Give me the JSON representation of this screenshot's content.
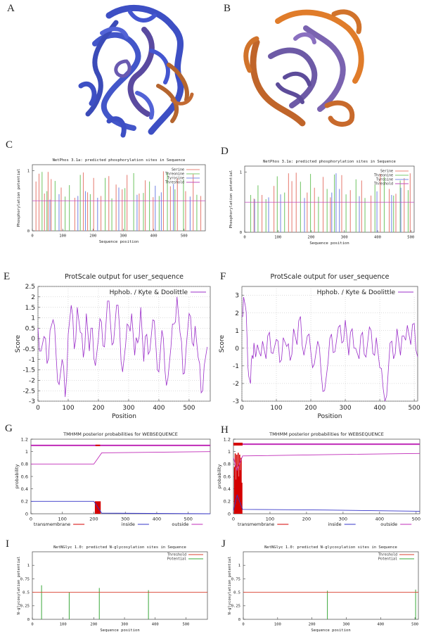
{
  "labels": {
    "a": "A",
    "b": "B",
    "c": "C",
    "d": "D",
    "e": "E",
    "f": "F",
    "g": "G",
    "h": "H",
    "i": "I",
    "j": "J"
  },
  "protein_a": {
    "name": "protein-structure-a",
    "colors": [
      "#3f51c8",
      "#5a4aa0",
      "#b5652e"
    ]
  },
  "protein_b": {
    "name": "protein-structure-b",
    "colors": [
      "#c0652a",
      "#6d5aa6",
      "#e07c2a"
    ]
  },
  "netphos": {
    "title": "NetPhos 3.1a: predicted phosphorylation sites in Sequence",
    "ylabel": "Phosphorylation potential",
    "xlabel": "Sequence position",
    "legend": [
      "Serine",
      "Threonine",
      "Tyrosine",
      "Threshold"
    ],
    "colors": {
      "serine": "#e8847a",
      "threonine": "#7bc96f",
      "tyrosine": "#7d8ee6",
      "threshold": "#c04dbd"
    }
  },
  "protscale": {
    "title": "ProtScale output for user_sequence",
    "legend": "Hphob. / Kyte & Doolittle",
    "ylabel": "Score",
    "xlabel": "Position",
    "color": "#9b2fc9"
  },
  "tmhmm": {
    "title": "TMHMM posterior probabilities for WEBSEQUENCE",
    "ylabel": "probability",
    "legend": [
      "transmembrane",
      "inside",
      "outside"
    ],
    "colors": {
      "transmembrane": "#d40000",
      "inside": "#3535c8",
      "outside": "#c02bb8"
    }
  },
  "netnglyc": {
    "title": "NetNGlyc 1.0: predicted N-glycosylation sites in Sequence",
    "ylabel": "N-glycosylation potential",
    "xlabel": "Sequence position",
    "legend": [
      "Threshold",
      "Potential"
    ],
    "colors": {
      "threshold": "#d9402f",
      "potential": "#3aa83a"
    }
  },
  "chart_data": [
    {
      "id": "C",
      "type": "bar",
      "title": "NetPhos 3.1a: predicted phosphorylation sites in Sequence",
      "xlabel": "Sequence position",
      "ylabel": "Phosphorylation potential",
      "xlim": [
        0,
        570
      ],
      "ylim": [
        0,
        1.1
      ],
      "xticks": [
        0,
        100,
        200,
        300,
        400,
        500
      ],
      "yticks": [
        0,
        1
      ],
      "threshold": 0.5,
      "series": [
        {
          "name": "Serine",
          "x": [
            12,
            22,
            40,
            52,
            62,
            95,
            140,
            168,
            182,
            202,
            226,
            252,
            276,
            296,
            312,
            352,
            372,
            398,
            432,
            455,
            478,
            505,
            530,
            555
          ],
          "values": [
            0.82,
            0.95,
            0.62,
            0.98,
            0.86,
            0.72,
            0.55,
            0.97,
            0.64,
            0.88,
            0.58,
            0.91,
            0.77,
            0.69,
            0.93,
            0.62,
            0.84,
            0.56,
            0.99,
            0.74,
            0.87,
            0.66,
            0.94,
            0.58
          ]
        },
        {
          "name": "Threonine",
          "x": [
            32,
            48,
            75,
            108,
            122,
            158,
            191,
            240,
            262,
            305,
            334,
            366,
            386,
            418,
            445,
            470,
            498,
            542
          ],
          "values": [
            0.98,
            0.66,
            0.83,
            0.57,
            0.76,
            0.93,
            0.61,
            0.88,
            0.54,
            0.71,
            0.96,
            0.63,
            0.82,
            0.58,
            0.97,
            0.69,
            0.85,
            0.6
          ]
        },
        {
          "name": "Tyrosine",
          "x": [
            58,
            88,
            150,
            175,
            215,
            285,
            345,
            405,
            425,
            465,
            520
          ],
          "values": [
            0.52,
            0.61,
            0.58,
            0.66,
            0.55,
            0.72,
            0.6,
            0.75,
            0.64,
            0.78,
            0.57
          ]
        }
      ]
    },
    {
      "id": "D",
      "type": "bar",
      "title": "NetPhos 3.1a: predicted phosphorylation sites in Sequence",
      "xlabel": "Sequence position",
      "ylabel": "Phosphorylation potential",
      "xlim": [
        0,
        510
      ],
      "ylim": [
        0,
        1.1
      ],
      "xticks": [
        0,
        100,
        200,
        300,
        400,
        500
      ],
      "yticks": [
        0,
        1
      ],
      "threshold": 0.5,
      "series": [
        {
          "name": "Serine",
          "x": [
            28,
            52,
            88,
            132,
            142,
            155,
            188,
            210,
            236,
            258,
            292,
            318,
            352,
            380,
            408,
            435,
            455,
            480,
            498
          ],
          "values": [
            0.56,
            0.62,
            0.77,
            0.98,
            0.85,
            0.99,
            0.66,
            0.74,
            0.92,
            0.58,
            0.95,
            0.7,
            0.86,
            0.61,
            0.97,
            0.72,
            0.64,
            0.9,
            0.98
          ]
        },
        {
          "name": "Threonine",
          "x": [
            18,
            40,
            64,
            98,
            120,
            168,
            198,
            222,
            248,
            270,
            305,
            335,
            362,
            392,
            420,
            448,
            468,
            492
          ],
          "values": [
            0.62,
            0.78,
            0.55,
            0.93,
            0.66,
            0.84,
            0.97,
            0.59,
            0.72,
            0.96,
            0.63,
            0.88,
            0.57,
            0.79,
            0.92,
            0.61,
            0.86,
            0.7
          ]
        },
        {
          "name": "Tyrosine",
          "x": [
            30,
            72,
            108,
            180,
            262,
            275,
            285,
            345,
            398,
            442,
            470
          ],
          "values": [
            0.55,
            0.58,
            0.63,
            0.57,
            0.66,
            0.98,
            0.72,
            0.6,
            0.68,
            0.62,
            0.74
          ]
        }
      ]
    },
    {
      "id": "E",
      "type": "line",
      "title": "ProtScale output for user_sequence",
      "xlabel": "Position",
      "ylabel": "Score",
      "xlim": [
        0,
        570
      ],
      "ylim": [
        -3,
        2.5
      ],
      "xticks": [
        0,
        100,
        200,
        300,
        400,
        500
      ],
      "yticks": [
        -3,
        -2.5,
        -2,
        -1.5,
        -1,
        -0.5,
        0,
        0.5,
        1,
        1.5,
        2,
        2.5
      ],
      "series": [
        {
          "name": "Hphob. / Kyte & Doolittle",
          "x": [
            0,
            10,
            20,
            30,
            40,
            50,
            60,
            70,
            80,
            90,
            100,
            110,
            120,
            130,
            140,
            150,
            160,
            170,
            180,
            190,
            200,
            210,
            220,
            230,
            240,
            250,
            260,
            270,
            280,
            290,
            300,
            310,
            320,
            330,
            340,
            350,
            360,
            370,
            380,
            390,
            400,
            410,
            420,
            430,
            440,
            450,
            460,
            470,
            480,
            490,
            500,
            510,
            520,
            530,
            540,
            550,
            560
          ],
          "values": [
            0.5,
            -0.6,
            0.1,
            -1.2,
            0.4,
            0.9,
            -0.8,
            -2.2,
            -1.0,
            -2.8,
            0.2,
            1.6,
            -0.5,
            1.5,
            0.3,
            -0.9,
            1.2,
            -0.6,
            0.5,
            -1.3,
            0.0,
            0.8,
            -0.4,
            1.8,
            0.7,
            -0.2,
            1.6,
            0.5,
            -1.6,
            -0.3,
            0.6,
            1.2,
            -0.8,
            -0.2,
            1.5,
            -1.1,
            0.2,
            -0.6,
            0.9,
            -0.3,
            -1.6,
            0.4,
            -1.5,
            -1.9,
            -0.4,
            0.7,
            2.0,
            0.3,
            -1.7,
            -0.5,
            1.2,
            -0.2,
            0.6,
            -0.9,
            -2.6,
            -1.3,
            -0.4
          ]
        }
      ]
    },
    {
      "id": "F",
      "type": "line",
      "title": "ProtScale output for user_sequence",
      "xlabel": "Position",
      "ylabel": "Score",
      "xlim": [
        0,
        510
      ],
      "ylim": [
        -3,
        3.5
      ],
      "xticks": [
        0,
        100,
        200,
        300,
        400,
        500
      ],
      "yticks": [
        -3,
        -2,
        -1,
        0,
        1,
        2,
        3
      ],
      "series": [
        {
          "name": "Hphob. / Kyte & Doolittle",
          "x": [
            0,
            5,
            10,
            15,
            20,
            25,
            30,
            35,
            40,
            50,
            60,
            70,
            80,
            90,
            100,
            110,
            120,
            130,
            140,
            150,
            160,
            170,
            180,
            190,
            200,
            210,
            220,
            230,
            240,
            250,
            260,
            270,
            280,
            290,
            300,
            310,
            320,
            330,
            340,
            350,
            360,
            370,
            380,
            390,
            400,
            410,
            420,
            430,
            440,
            450,
            460,
            470,
            480,
            490,
            500,
            510
          ],
          "values": [
            1.8,
            2.9,
            2.4,
            0.6,
            -1.6,
            -2.0,
            -0.4,
            0.3,
            -0.5,
            -0.2,
            0.4,
            -0.6,
            0.9,
            -0.3,
            0.5,
            -0.8,
            0.6,
            0.1,
            -0.7,
            1.1,
            0.2,
            1.8,
            -0.4,
            0.7,
            -0.2,
            -0.9,
            0.4,
            -1.4,
            -2.4,
            -0.8,
            0.8,
            -0.2,
            1.2,
            0.3,
            1.6,
            -0.4,
            1.1,
            0.0,
            -0.6,
            0.9,
            -0.5,
            1.2,
            -0.3,
            0.6,
            -1.1,
            -2.3,
            -2.7,
            0.3,
            -0.6,
            1.1,
            -0.4,
            0.7,
            1.3,
            0.2,
            1.4,
            -0.5
          ]
        }
      ]
    },
    {
      "id": "G",
      "type": "line",
      "title": "TMHMM posterior probabilities for WEBSEQUENCE",
      "ylabel": "probability",
      "xlim": [
        0,
        570
      ],
      "ylim": [
        0,
        1.2
      ],
      "xticks": [
        0,
        100,
        200,
        300,
        400,
        500
      ],
      "yticks": [
        0,
        0.2,
        0.4,
        0.6,
        0.8,
        1,
        1.2
      ],
      "series": [
        {
          "name": "transmembrane",
          "x": [
            205,
            208,
            211,
            214,
            217,
            220
          ],
          "values": [
            0.2,
            0.2,
            0.2,
            0.2,
            0.2,
            0.2
          ]
        },
        {
          "name": "inside",
          "x": [
            0,
            200,
            225,
            570
          ],
          "values": [
            0.2,
            0.2,
            0.01,
            0.0
          ]
        },
        {
          "name": "outside",
          "x": [
            0,
            200,
            225,
            570
          ],
          "values": [
            0.8,
            0.8,
            0.98,
            1.0
          ]
        }
      ],
      "bands": [
        {
          "name": "top-line",
          "value": 1.1
        }
      ]
    },
    {
      "id": "H",
      "type": "line",
      "title": "TMHMM posterior probabilities for WEBSEQUENCE",
      "ylabel": "probability",
      "xlim": [
        0,
        510
      ],
      "ylim": [
        0,
        1.2
      ],
      "xticks": [
        0,
        100,
        200,
        300,
        400,
        500
      ],
      "yticks": [
        0,
        0.2,
        0.4,
        0.6,
        0.8,
        1,
        1.2
      ],
      "series": [
        {
          "name": "transmembrane",
          "x": [
            3,
            5,
            7,
            9,
            11,
            13,
            15,
            17,
            19,
            21,
            23
          ],
          "values": [
            0.75,
            0.97,
            0.55,
            0.95,
            0.7,
            0.98,
            0.6,
            0.95,
            0.7,
            0.9,
            0.5
          ]
        },
        {
          "name": "inside",
          "x": [
            0,
            10,
            25,
            250,
            510
          ],
          "values": [
            0.05,
            0.3,
            0.07,
            0.06,
            0.04
          ]
        },
        {
          "name": "outside",
          "x": [
            0,
            10,
            25,
            250,
            510
          ],
          "values": [
            0.9,
            0.7,
            0.93,
            0.95,
            0.97
          ]
        }
      ],
      "bands": [
        {
          "name": "top-line",
          "value": 1.12
        }
      ]
    },
    {
      "id": "I",
      "type": "bar",
      "title": "NetNGlyc 1.0: predicted N-glycosylation sites in Sequence",
      "xlabel": "Sequence position",
      "ylabel": "N-glycosylation potential",
      "xlim": [
        0,
        570
      ],
      "ylim": [
        0,
        1.25
      ],
      "xticks": [
        0,
        100,
        200,
        300,
        400,
        500
      ],
      "yticks": [
        0,
        0.25,
        0.5,
        0.75,
        1
      ],
      "threshold": 0.5,
      "series": [
        {
          "name": "Potential",
          "x": [
            30,
            120,
            218,
            378
          ],
          "values": [
            0.63,
            0.5,
            0.58,
            0.54
          ]
        }
      ]
    },
    {
      "id": "J",
      "type": "bar",
      "title": "NetNGlyc 1.0: predicted N-glycosylation sites in Sequence",
      "xlabel": "Sequence position",
      "ylabel": "N-glycosylation potential",
      "xlim": [
        0,
        510
      ],
      "ylim": [
        0,
        1.25
      ],
      "xticks": [
        0,
        100,
        200,
        300,
        400,
        500
      ],
      "yticks": [
        0,
        0.25,
        0.5,
        0.75,
        1
      ],
      "threshold": 0.5,
      "series": [
        {
          "name": "Potential",
          "x": [
            245,
            502
          ],
          "values": [
            0.53,
            0.55
          ]
        }
      ]
    }
  ]
}
